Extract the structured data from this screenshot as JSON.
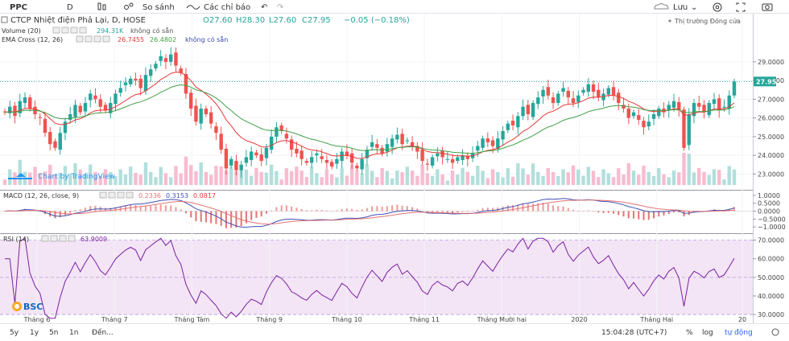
{
  "toolbar": {
    "symbol": "PPC",
    "interval": "D",
    "compare_label": "So sánh",
    "indicators_label": "Các chỉ báo",
    "save_label": "Lưu"
  },
  "legend": {
    "title": "CTCP Nhiệt điện Phả Lại, D, HOSE",
    "open": "O27.60",
    "high": "H28.30",
    "low": "L27.60",
    "close": "C27.95",
    "change": "−0.05 (−0.18%)",
    "market_status": "Thị trường Đóng cửa",
    "volume_label": "Volume (20)",
    "volume_value": "294.31K",
    "volume_extra": "không có sẵn",
    "ema_label": "EMA Cross (12, 26)",
    "ema_fast": "26.7455",
    "ema_slow": "26.4802",
    "ema_extra": "không có sẵn",
    "watermark": "Chart by TradingView",
    "macd_label": "MACD (12, 26, close, 9)",
    "macd_hist": "0.2336",
    "macd_line": "0.3153",
    "macd_signal": "0.0817",
    "rsi_label": "RSI (14)",
    "rsi_value": "63.9009",
    "logo": "BSC"
  },
  "bottom_bar": {
    "ranges": [
      "5y",
      "1y",
      "5n",
      "1n",
      "Đến..."
    ],
    "time": "15:04:28 (UTC+7)",
    "pct": "%",
    "log": "log",
    "auto": "tự động"
  },
  "colors": {
    "up": "#26a69a",
    "down": "#ef5350",
    "ema_fast": "#e53935",
    "ema_slow": "#43a047",
    "macd": "#3f51b5",
    "signal": "#e57373",
    "rsi": "#7b1fa2",
    "rsi_band": "#f3e5f5"
  },
  "chart_data": {
    "type": "candlestick",
    "x_ticks": [
      "Tháng 6",
      "Tháng 7",
      "Tháng Tám",
      "Tháng 9",
      "Tháng 10",
      "Tháng 11",
      "Tháng Mười hai",
      "2020",
      "Tháng Hai",
      "20"
    ],
    "price_axis": {
      "ticks": [
        29.0,
        28.0,
        27.0,
        26.0,
        25.0,
        24.0,
        23.0
      ],
      "last": 27.95,
      "ylim": [
        22.5,
        29.9
      ]
    },
    "macd_axis": {
      "ticks": [
        1.0,
        0.5,
        0.0,
        -0.5,
        -1.0
      ],
      "ylim": [
        -1.3,
        1.15
      ]
    },
    "rsi_axis": {
      "ticks": [
        70,
        60,
        50,
        40,
        30
      ],
      "band": [
        30,
        70
      ],
      "ylim": [
        27,
        72
      ]
    },
    "close": [
      26.3,
      26.6,
      26.1,
      26.9,
      27.1,
      26.5,
      26.2,
      26.0,
      25.2,
      24.6,
      24.4,
      25.2,
      25.8,
      26.2,
      26.7,
      26.3,
      26.8,
      27.3,
      27.0,
      26.6,
      26.4,
      26.8,
      27.3,
      27.6,
      27.9,
      28.1,
      28.0,
      27.6,
      28.3,
      28.6,
      28.9,
      29.3,
      29.0,
      29.4,
      28.8,
      28.4,
      27.3,
      26.5,
      25.8,
      26.5,
      26.2,
      25.7,
      25.2,
      24.3,
      23.3,
      23.8,
      23.2,
      23.5,
      23.9,
      24.2,
      24.0,
      23.7,
      24.4,
      25.0,
      25.5,
      25.3,
      24.9,
      24.3,
      24.1,
      23.8,
      23.6,
      23.9,
      24.1,
      23.8,
      23.6,
      23.4,
      23.8,
      24.2,
      24.0,
      23.6,
      23.3,
      23.8,
      24.3,
      24.7,
      24.4,
      24.1,
      24.6,
      24.9,
      25.1,
      24.6,
      24.8,
      24.5,
      24.2,
      23.7,
      23.5,
      23.9,
      24.1,
      23.9,
      23.8,
      23.6,
      23.9,
      24.0,
      23.8,
      24.1,
      24.5,
      24.9,
      24.7,
      24.5,
      24.9,
      25.3,
      25.7,
      25.6,
      26.1,
      26.6,
      26.2,
      26.8,
      27.1,
      27.5,
      27.2,
      26.8,
      27.3,
      27.6,
      27.1,
      26.8,
      27.2,
      27.5,
      27.8,
      27.4,
      27.1,
      27.3,
      27.6,
      27.2,
      26.8,
      26.5,
      26.0,
      26.3,
      25.9,
      25.5,
      25.8,
      26.2,
      26.5,
      26.3,
      26.7,
      26.9,
      26.4,
      24.4,
      26.2,
      26.8,
      26.6,
      26.3,
      26.8,
      27.0,
      26.4,
      26.6,
      27.2,
      27.95
    ]
  }
}
